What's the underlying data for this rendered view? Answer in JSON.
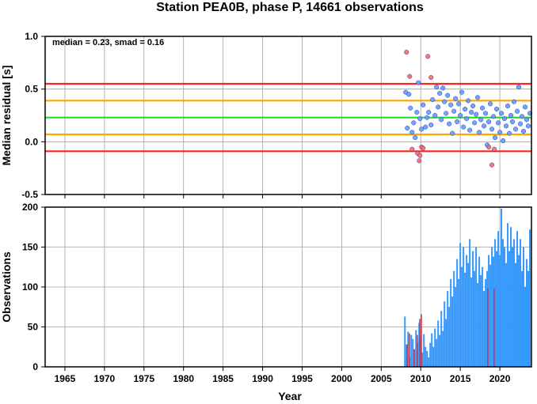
{
  "title": "Station PEA0B, phase P, 14661 observations",
  "chart_data": [
    {
      "type": "scatter",
      "ylabel": "Median residual [s]",
      "annotation": "median = 0.23, smad = 0.16",
      "xlim": [
        1962.5,
        2024
      ],
      "ylim": [
        -0.5,
        1.0
      ],
      "yticks": [
        "1.0",
        "0.5",
        "0.0",
        "-0.5"
      ],
      "ytick_values": [
        1.0,
        0.5,
        0.0,
        -0.5
      ],
      "hlines": [
        {
          "value": 0.23,
          "color": "#22dd22"
        },
        {
          "value": 0.39,
          "color": "#ffa500"
        },
        {
          "value": 0.07,
          "color": "#ffa500"
        },
        {
          "value": 0.55,
          "color": "#ff2222"
        },
        {
          "value": -0.09,
          "color": "#ff2222"
        }
      ],
      "series": [
        {
          "color": "#6699ff",
          "points": [
            [
              2008.1,
              0.47
            ],
            [
              2008.3,
              0.13
            ],
            [
              2008.5,
              0.45
            ],
            [
              2008.7,
              0.32
            ],
            [
              2008.9,
              0.09
            ],
            [
              2009.1,
              0.18
            ],
            [
              2009.3,
              0.04
            ],
            [
              2009.5,
              0.28
            ],
            [
              2009.7,
              0.56
            ],
            [
              2009.9,
              0.22
            ],
            [
              2010.1,
              0.12
            ],
            [
              2010.3,
              0.35
            ],
            [
              2010.6,
              0.14
            ],
            [
              2010.8,
              0.23
            ],
            [
              2011.0,
              0.28
            ],
            [
              2011.3,
              0.16
            ],
            [
              2011.5,
              0.4
            ],
            [
              2011.8,
              0.25
            ],
            [
              2012.0,
              0.52
            ],
            [
              2012.2,
              0.33
            ],
            [
              2012.4,
              0.46
            ],
            [
              2012.6,
              0.21
            ],
            [
              2012.8,
              0.51
            ],
            [
              2013.0,
              0.38
            ],
            [
              2013.2,
              0.27
            ],
            [
              2013.4,
              0.44
            ],
            [
              2013.6,
              0.17
            ],
            [
              2013.8,
              0.35
            ],
            [
              2014.0,
              0.08
            ],
            [
              2014.2,
              0.29
            ],
            [
              2014.4,
              0.41
            ],
            [
              2014.6,
              0.19
            ],
            [
              2014.8,
              0.36
            ],
            [
              2015.0,
              0.25
            ],
            [
              2015.2,
              0.47
            ],
            [
              2015.4,
              0.14
            ],
            [
              2015.6,
              0.31
            ],
            [
              2015.8,
              0.22
            ],
            [
              2016.0,
              0.39
            ],
            [
              2016.2,
              0.11
            ],
            [
              2016.4,
              0.28
            ],
            [
              2016.6,
              0.34
            ],
            [
              2016.8,
              0.18
            ],
            [
              2017.0,
              0.26
            ],
            [
              2017.2,
              0.42
            ],
            [
              2017.4,
              0.09
            ],
            [
              2017.6,
              0.21
            ],
            [
              2017.8,
              0.32
            ],
            [
              2018.0,
              0.15
            ],
            [
              2018.2,
              0.27
            ],
            [
              2018.4,
              -0.03
            ],
            [
              2018.6,
              0.19
            ],
            [
              2018.8,
              0.36
            ],
            [
              2019.0,
              0.12
            ],
            [
              2019.2,
              0.24
            ],
            [
              2019.4,
              0.04
            ],
            [
              2019.6,
              0.31
            ],
            [
              2019.8,
              0.18
            ],
            [
              2020.0,
              0.09
            ],
            [
              2020.2,
              0.27
            ],
            [
              2020.4,
              0.01
            ],
            [
              2020.6,
              0.22
            ],
            [
              2020.8,
              0.15
            ],
            [
              2021.0,
              0.34
            ],
            [
              2021.2,
              0.08
            ],
            [
              2021.4,
              0.25
            ],
            [
              2021.6,
              0.19
            ],
            [
              2021.8,
              0.38
            ],
            [
              2022.0,
              0.12
            ],
            [
              2022.2,
              0.29
            ],
            [
              2022.4,
              0.52
            ],
            [
              2022.6,
              0.17
            ],
            [
              2022.8,
              0.24
            ],
            [
              2023.0,
              0.1
            ],
            [
              2023.2,
              0.33
            ],
            [
              2023.4,
              0.21
            ],
            [
              2023.6,
              0.15
            ],
            [
              2023.8,
              0.27
            ]
          ]
        },
        {
          "color": "#ff6666",
          "points": [
            [
              2008.2,
              0.85
            ],
            [
              2008.6,
              0.62
            ],
            [
              2008.9,
              -0.07
            ],
            [
              2009.6,
              -0.11
            ],
            [
              2009.8,
              -0.18
            ],
            [
              2009.9,
              -0.13
            ],
            [
              2010.1,
              -0.05
            ],
            [
              2010.3,
              -0.06
            ],
            [
              2010.9,
              0.81
            ],
            [
              2011.3,
              0.61
            ],
            [
              2018.6,
              -0.05
            ],
            [
              2019.0,
              -0.22
            ],
            [
              2019.3,
              -0.07
            ]
          ]
        }
      ]
    },
    {
      "type": "bar",
      "ylabel": "Observations",
      "xlabel": "Year",
      "xlim": [
        1962.5,
        2024
      ],
      "ylim": [
        0,
        200
      ],
      "yticks": [
        "200",
        "150",
        "100",
        "50",
        "0"
      ],
      "ytick_values": [
        200,
        150,
        100,
        50,
        0
      ],
      "xticks": [
        "1965",
        "1970",
        "1975",
        "1980",
        "1985",
        "1990",
        "1995",
        "2000",
        "2005",
        "2010",
        "2015",
        "2020"
      ],
      "xtick_values": [
        1965,
        1970,
        1975,
        1980,
        1985,
        1990,
        1995,
        2000,
        2005,
        2010,
        2015,
        2020
      ],
      "series": [
        {
          "color": "#3399ff",
          "x": [
            2008.0,
            2008.2,
            2008.4,
            2008.6,
            2008.8,
            2009.0,
            2009.2,
            2009.4,
            2009.6,
            2009.8,
            2010.0,
            2010.2,
            2010.4,
            2010.6,
            2010.8,
            2011.0,
            2011.2,
            2011.4,
            2011.6,
            2011.8,
            2012.0,
            2012.2,
            2012.4,
            2012.6,
            2012.8,
            2013.0,
            2013.2,
            2013.4,
            2013.6,
            2013.8,
            2014.0,
            2014.2,
            2014.4,
            2014.6,
            2014.8,
            2015.0,
            2015.2,
            2015.4,
            2015.6,
            2015.8,
            2016.0,
            2016.2,
            2016.4,
            2016.6,
            2016.8,
            2017.0,
            2017.2,
            2017.4,
            2017.6,
            2017.8,
            2018.0,
            2018.2,
            2018.4,
            2018.6,
            2018.8,
            2019.0,
            2019.2,
            2019.4,
            2019.6,
            2019.8,
            2020.0,
            2020.2,
            2020.4,
            2020.6,
            2020.8,
            2021.0,
            2021.2,
            2021.4,
            2021.6,
            2021.8,
            2022.0,
            2022.2,
            2022.4,
            2022.6,
            2022.8,
            2023.0,
            2023.2,
            2023.4,
            2023.6,
            2023.8
          ],
          "values": [
            63,
            28,
            44,
            12,
            40,
            35,
            22,
            46,
            30,
            55,
            38,
            18,
            41,
            25,
            20,
            12,
            30,
            42,
            25,
            48,
            35,
            58,
            40,
            70,
            45,
            82,
            60,
            95,
            75,
            110,
            88,
            120,
            100,
            135,
            110,
            155,
            125,
            150,
            118,
            140,
            130,
            160,
            112,
            145,
            120,
            150,
            105,
            138,
            115,
            125,
            95,
            110,
            120,
            140,
            128,
            150,
            138,
            160,
            145,
            170,
            140,
            198,
            160,
            150,
            130,
            180,
            145,
            175,
            150,
            160,
            130,
            170,
            140,
            160,
            120,
            150,
            100,
            135,
            120,
            172
          ]
        },
        {
          "color": "#cc3344",
          "x": [
            2008.3,
            2008.6,
            2009.2,
            2009.6,
            2009.9,
            2010.1,
            2018.5,
            2019.3
          ],
          "values": [
            28,
            42,
            22,
            40,
            60,
            66,
            98,
            98
          ]
        }
      ]
    }
  ]
}
